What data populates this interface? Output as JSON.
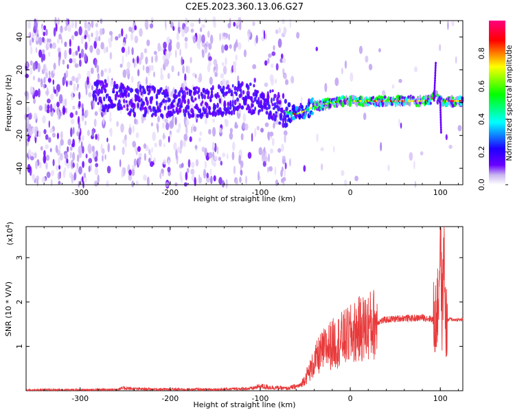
{
  "title": "C2E5.2023.360.13.06.G27",
  "chart_data": [
    {
      "type": "heatmap",
      "xlabel": "Height of straight line (km)",
      "ylabel": "Frequency (Hz)",
      "xlim": [
        -360,
        125
      ],
      "ylim": [
        -50,
        50
      ],
      "x_ticks": [
        -300,
        -200,
        -100,
        0,
        100
      ],
      "y_ticks": [
        -40,
        -20,
        0,
        20,
        40
      ],
      "colorbar": {
        "label": "Normalized spectral amplitude",
        "range": [
          0,
          1
        ],
        "ticks": [
          0.0,
          0.2,
          0.4,
          0.6,
          0.8
        ],
        "colors": [
          "#ffffff",
          "#c8b4f0",
          "#6a00ff",
          "#1e00ff",
          "#00ffff",
          "#00ff00",
          "#ffff00",
          "#ff0000",
          "#ff0080"
        ]
      },
      "ridge": {
        "x": [
          -280,
          -250,
          -200,
          -150,
          -120,
          -100,
          -80,
          -70,
          -60,
          -50,
          -40,
          -30,
          -20,
          -10,
          0,
          20,
          50,
          80,
          90,
          95,
          100,
          110,
          125
        ],
        "y": [
          5,
          2,
          0,
          1,
          3,
          2,
          -3,
          -6,
          -7,
          -5,
          -2,
          -1,
          0,
          1,
          1,
          1,
          1,
          1,
          2,
          4,
          1,
          1,
          1
        ]
      }
    },
    {
      "type": "line",
      "xlabel": "Height of straight line (km)",
      "ylabel": "SNR (10 * V/V)",
      "y_multiplier": "(x10",
      "y_multiplier_exp": "4",
      "y_multiplier_close": ")",
      "xlim": [
        -360,
        125
      ],
      "ylim": [
        0,
        3.7
      ],
      "x_ticks": [
        -300,
        -200,
        -100,
        0,
        100
      ],
      "y_ticks": [
        1,
        2,
        3
      ],
      "color": "#e8393a",
      "series": [
        {
          "x": [
            -360,
            -300,
            -260,
            -250,
            -240,
            -200,
            -150,
            -110,
            -100,
            -90,
            -70,
            -55,
            -45,
            -35,
            -25,
            -15,
            -5,
            0,
            10,
            20,
            30,
            40,
            50,
            60,
            70,
            80,
            90,
            95,
            98,
            100,
            102,
            104,
            106,
            110,
            115,
            125
          ],
          "y": [
            0.02,
            0.02,
            0.03,
            0.06,
            0.04,
            0.03,
            0.03,
            0.05,
            0.1,
            0.08,
            0.05,
            0.12,
            0.45,
            0.8,
            1.0,
            1.1,
            1.2,
            1.25,
            1.38,
            1.45,
            1.55,
            1.6,
            1.62,
            1.64,
            1.63,
            1.65,
            1.62,
            1.6,
            2.0,
            3.6,
            1.6,
            3.3,
            1.5,
            1.62,
            1.6,
            1.6
          ]
        }
      ]
    }
  ]
}
